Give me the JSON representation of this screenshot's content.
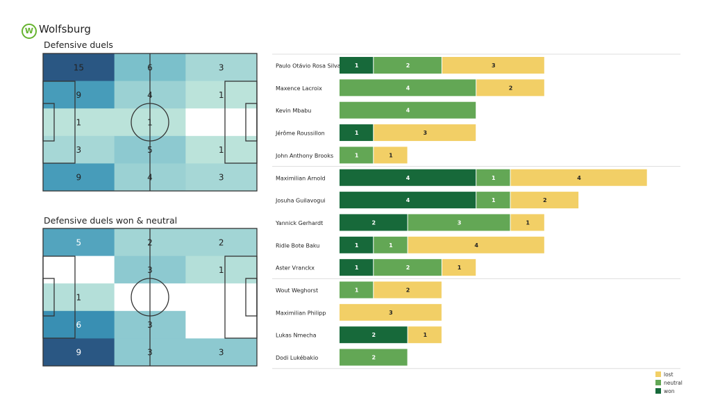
{
  "team": {
    "name": "Wolfsburg",
    "logo_letter": "W"
  },
  "chart_data": [
    {
      "type": "heatmap",
      "title": "Defensive duels",
      "grid": [
        [
          15,
          6,
          3
        ],
        [
          9,
          4,
          1
        ],
        [
          1,
          1,
          0
        ],
        [
          3,
          5,
          1
        ],
        [
          9,
          4,
          3
        ]
      ]
    },
    {
      "type": "heatmap",
      "title": "Defensive duels won & neutral",
      "grid": [
        [
          5,
          2,
          2
        ],
        [
          0,
          3,
          1
        ],
        [
          1,
          0,
          0
        ],
        [
          6,
          3,
          0
        ],
        [
          9,
          3,
          3
        ]
      ]
    },
    {
      "type": "bar",
      "orientation": "horizontal",
      "stacked": true,
      "legend_position": "bottom-right",
      "series_order": [
        "won",
        "neutral",
        "lost"
      ],
      "legend": [
        {
          "key": "lost",
          "label": "lost",
          "color": "#f2cf66"
        },
        {
          "key": "neutral",
          "label": "neutral",
          "color": "#63a755"
        },
        {
          "key": "won",
          "label": "won",
          "color": "#17693a"
        }
      ],
      "groups": [
        [
          {
            "player": "Paulo Otávio Rosa Silva",
            "won": 1,
            "neutral": 2,
            "lost": 3
          },
          {
            "player": "Maxence Lacroix",
            "won": 0,
            "neutral": 4,
            "lost": 2
          },
          {
            "player": "Kevin Mbabu",
            "won": 0,
            "neutral": 4,
            "lost": 0
          },
          {
            "player": "Jérôme Roussillon",
            "won": 1,
            "neutral": 0,
            "lost": 3
          },
          {
            "player": "John Anthony Brooks",
            "won": 0,
            "neutral": 1,
            "lost": 1
          }
        ],
        [
          {
            "player": "Maximilian Arnold",
            "won": 4,
            "neutral": 1,
            "lost": 4
          },
          {
            "player": "Josuha Guilavogui",
            "won": 4,
            "neutral": 1,
            "lost": 2
          },
          {
            "player": "Yannick Gerhardt",
            "won": 2,
            "neutral": 3,
            "lost": 1
          },
          {
            "player": "Ridle Bote Baku",
            "won": 1,
            "neutral": 1,
            "lost": 4
          },
          {
            "player": "Aster Vranckx",
            "won": 1,
            "neutral": 2,
            "lost": 1
          }
        ],
        [
          {
            "player": "Wout Weghorst",
            "won": 0,
            "neutral": 1,
            "lost": 2
          },
          {
            "player": "Maximilian Philipp",
            "won": 0,
            "neutral": 0,
            "lost": 3
          },
          {
            "player": "Lukas Nmecha",
            "won": 2,
            "neutral": 0,
            "lost": 1
          },
          {
            "player": "Dodi Lukébakio",
            "won": 0,
            "neutral": 2,
            "lost": 0
          }
        ]
      ]
    }
  ]
}
